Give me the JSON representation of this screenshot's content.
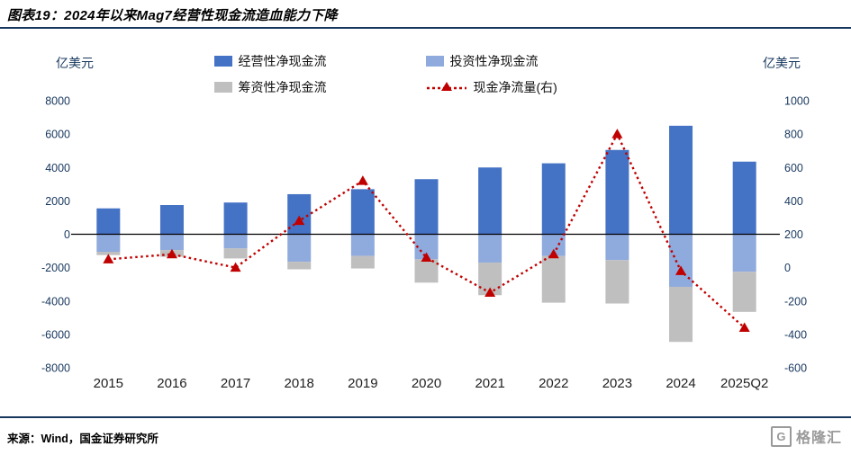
{
  "header": {
    "title": "图表19：2024年以来Mag7经营性现金流造血能力下降"
  },
  "axes": {
    "left_unit": "亿美元",
    "right_unit": "亿美元"
  },
  "footer": {
    "source": "来源：Wind，国金证券研究所",
    "logo_text": "格隆汇",
    "logo_glyph": "G"
  },
  "colors": {
    "accent_rule": "#17375E",
    "operating_bar": "#4472C4",
    "investing_bar": "#8FAADC",
    "financing_bar": "#BFBFBF",
    "net_line": "#C00000"
  },
  "chart_data": {
    "type": "bar",
    "subtype": "stacked-bar-with-line",
    "title": "2024年以来Mag7经营性现金流造血能力下降",
    "categories": [
      "2015",
      "2016",
      "2017",
      "2018",
      "2019",
      "2020",
      "2021",
      "2022",
      "2023",
      "2024",
      "2025Q2"
    ],
    "series": [
      {
        "name": "经营性净现金流",
        "key": "operating",
        "type": "bar",
        "axis": "left",
        "color": "#4472C4",
        "values": [
          1550,
          1750,
          1900,
          2400,
          2700,
          3300,
          4000,
          4250,
          5050,
          6500,
          4350
        ]
      },
      {
        "name": "投资性净现金流",
        "key": "investing",
        "type": "bar",
        "axis": "left",
        "color": "#8FAADC",
        "values": [
          -1050,
          -950,
          -850,
          -1650,
          -1300,
          -1500,
          -1700,
          -1300,
          -1550,
          -3150,
          -2250
        ]
      },
      {
        "name": "筹资性净现金流",
        "key": "financing",
        "type": "bar",
        "axis": "left",
        "color": "#BFBFBF",
        "values": [
          -200,
          -400,
          -600,
          -450,
          -750,
          -1400,
          -1950,
          -2800,
          -2600,
          -3300,
          -2400
        ]
      },
      {
        "name": "现金净流量(右)",
        "key": "net_flow",
        "type": "line",
        "axis": "right",
        "color": "#C00000",
        "values": [
          50,
          80,
          0,
          280,
          520,
          60,
          -150,
          80,
          800,
          -20,
          -360
        ]
      }
    ],
    "left_axis": {
      "min": -8000,
      "max": 8000,
      "ticks": [
        8000,
        6000,
        4000,
        2000,
        0,
        -2000,
        -4000,
        -6000,
        -8000
      ],
      "label": "亿美元"
    },
    "right_axis": {
      "min": -600,
      "max": 1000,
      "ticks": [
        1000,
        800,
        600,
        400,
        200,
        0,
        -200,
        -400,
        -600
      ],
      "label": "亿美元"
    },
    "grid": false,
    "legend_position": "top"
  }
}
